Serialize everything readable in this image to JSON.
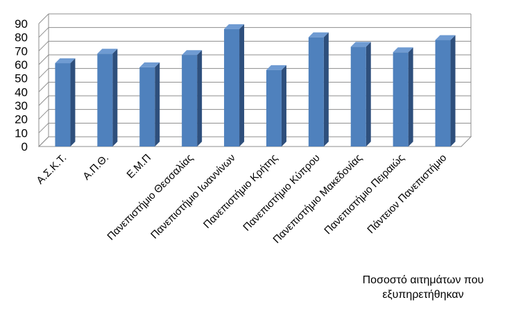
{
  "chart_data": {
    "type": "bar",
    "categories": [
      "Α.Σ.Κ.Τ.",
      "Α.Π.Θ.",
      "Ε.Μ.Π",
      "Πανεπιστήμιο Θεσσαλίας",
      "Πανεπιστήμιο Ιωαννίνων",
      "Πανεπιστήμιο  Κρήτης",
      "Πανεπιστήμιο Κύπρου",
      "Πανεπιστήμιο Μακεδονίας",
      "Πανεπιστήμιο Πειραιώς",
      "Πάντειον Πανεπιστήμιο"
    ],
    "series": [
      {
        "name": "Ποσοστό αιτημάτων που εξυπηρετήθηκαν",
        "values": [
          61,
          68,
          58,
          67,
          86,
          56,
          80,
          73,
          69,
          78
        ]
      }
    ],
    "ylim": [
      0,
      90
    ],
    "yticks": [
      0,
      10,
      20,
      30,
      40,
      50,
      60,
      70,
      80,
      90
    ],
    "grid": true,
    "three_d": true,
    "legend_position": "bottom-right",
    "colors": {
      "bar_front": "#4f81bd",
      "bar_side": "#2e4f7c",
      "bar_top": "#6f9bd2",
      "grid": "#8c8c8c"
    }
  },
  "legend": {
    "line1": "Ποσοστό αιτημάτων που",
    "line2": "εξυπηρετήθηκαν"
  }
}
